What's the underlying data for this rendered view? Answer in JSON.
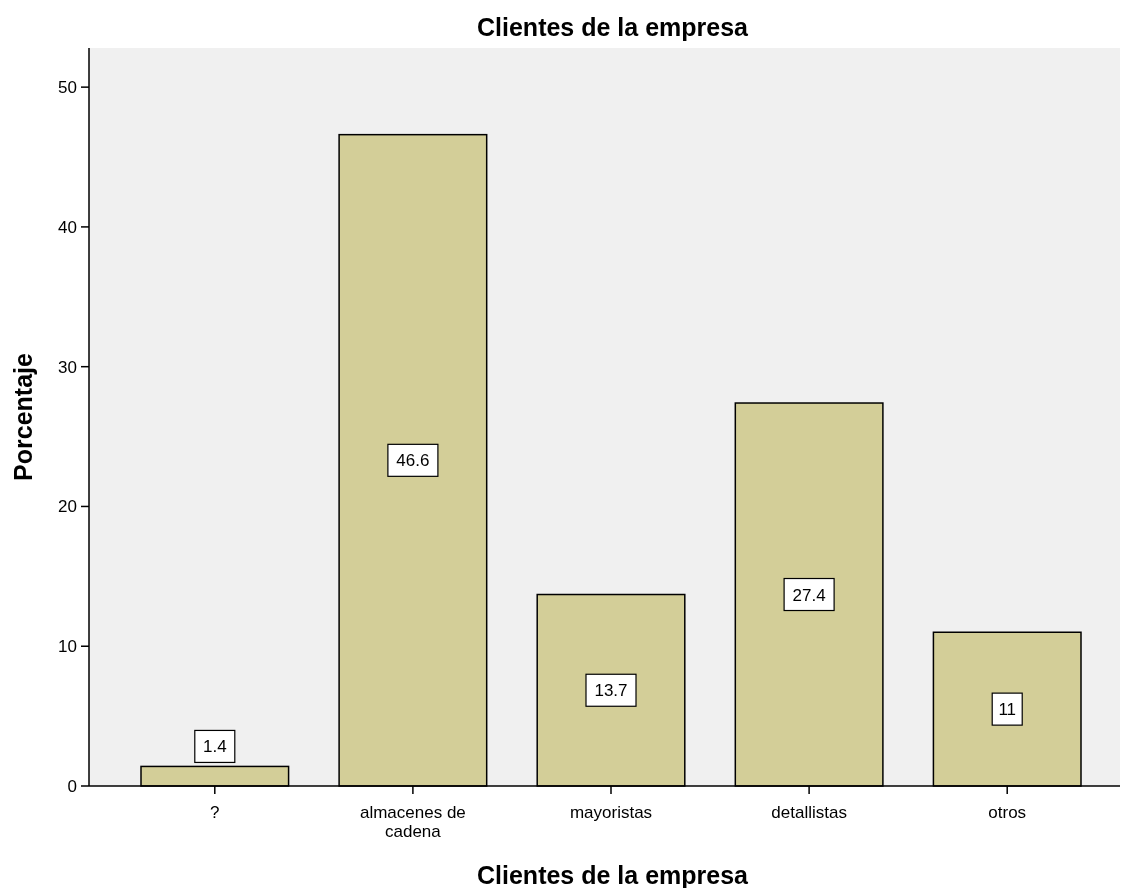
{
  "chart_data": {
    "type": "bar",
    "title": "Clientes de la empresa",
    "xlabel": "Clientes de la empresa",
    "ylabel": "Porcentaje",
    "categories": [
      "?",
      "almacenes de cadena",
      "mayoristas",
      "detallistas",
      "otros"
    ],
    "values": [
      1.4,
      46.6,
      13.7,
      27.4,
      11
    ],
    "color": "#d3ce98",
    "ylim": [
      0,
      52.8
    ],
    "yticks": [
      0,
      10,
      20,
      30,
      40,
      50
    ],
    "grid": false,
    "data_labels": true
  }
}
